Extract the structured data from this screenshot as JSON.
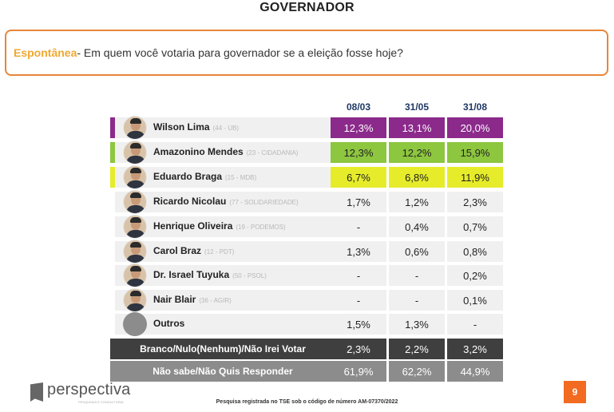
{
  "title": "GOVERNADOR",
  "question": {
    "keyword": "Espontânea",
    "text": " - Em quem você votaria para governador se a eleição fosse hoje?"
  },
  "columns": [
    "08/03",
    "31/05",
    "31/08"
  ],
  "candidates": [
    {
      "name": "Wilson Lima",
      "party": "(44 - UB)",
      "values": [
        "12,3%",
        "13,1%",
        "20,0%"
      ],
      "color": "#8b2a8b",
      "highlight": true,
      "text_color": "#ffffff"
    },
    {
      "name": "Amazonino Mendes",
      "party": "(23 - CIDADANIA)",
      "values": [
        "12,3%",
        "12,2%",
        "15,9%"
      ],
      "color": "#8dc63f",
      "highlight": true,
      "text_color": "#222222"
    },
    {
      "name": "Eduardo Braga",
      "party": "(15 - MDB)",
      "values": [
        "6,7%",
        "6,8%",
        "11,9%"
      ],
      "color": "#e6ec2a",
      "highlight": true,
      "text_color": "#222222"
    },
    {
      "name": "Ricardo Nicolau",
      "party": "(77 - SOLIDARIEDADE)",
      "values": [
        "1,7%",
        "1,2%",
        "2,3%"
      ],
      "color": "#f0f0f0",
      "highlight": false
    },
    {
      "name": "Henrique Oliveira",
      "party": "(19 - PODEMOS)",
      "values": [
        "-",
        "0,4%",
        "0,7%"
      ],
      "color": "#f0f0f0",
      "highlight": false
    },
    {
      "name": "Carol Braz",
      "party": "(12 - PDT)",
      "values": [
        "1,3%",
        "0,6%",
        "0,8%"
      ],
      "color": "#f0f0f0",
      "highlight": false
    },
    {
      "name": "Dr. Israel Tuyuka",
      "party": "(50 - PSOL)",
      "values": [
        "-",
        "-",
        "0,2%"
      ],
      "color": "#f0f0f0",
      "highlight": false
    },
    {
      "name": "Nair Blair",
      "party": "(36 - AGIR)",
      "values": [
        "-",
        "-",
        "0,1%"
      ],
      "color": "#f0f0f0",
      "highlight": false
    },
    {
      "name": "Outros",
      "party": "",
      "values": [
        "1,5%",
        "1,3%",
        "-"
      ],
      "color": "#f0f0f0",
      "highlight": false,
      "generic_avatar": true
    }
  ],
  "summary_rows": [
    {
      "label": "Branco/Nulo(Nenhum)/Não Irei Votar",
      "values": [
        "2,3%",
        "2,2%",
        "3,2%"
      ],
      "color": "#3f3f3f"
    },
    {
      "label": "Não sabe/Não Quis Responder",
      "values": [
        "61,9%",
        "62,2%",
        "44,9%"
      ],
      "color": "#8c8c8c"
    }
  ],
  "logo": {
    "name": "perspectiva",
    "tagline": "PESQUISAS E CONSULTORIA"
  },
  "footer_note": "Pesquisa registrada no TSE sob o código de número AM-07370/2022",
  "page_number": "9",
  "accent_color": "#f26b21"
}
